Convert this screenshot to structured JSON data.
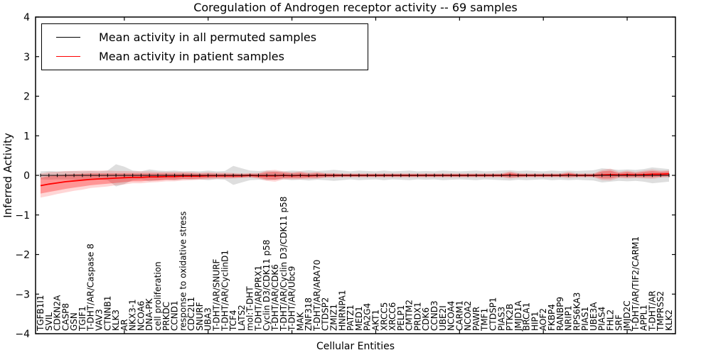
{
  "chart_data": {
    "type": "line",
    "title": "Coregulation of Androgen receptor activity -- 69 samples",
    "xlabel": "Cellular Entities",
    "ylabel": "Inferred Activity",
    "ylim": [
      -4,
      4
    ],
    "yticks": [
      4,
      3,
      2,
      1,
      0,
      -1,
      -2,
      -3,
      -4
    ],
    "ytick_labels": [
      "4",
      "3",
      "2",
      "1",
      "0",
      "−1",
      "−2",
      "−3",
      "−4"
    ],
    "xtick_step": 10,
    "grid": false,
    "legend_position": "upper left",
    "categories": [
      "TGFB1I1",
      "SVIL",
      "CDKN2A",
      "CASP8",
      "GSN",
      "TGIF1",
      "T-DHT/AR/Caspase 8",
      "VAV3",
      "CTNNB1",
      "KLK3",
      "AR",
      "NKX3-1",
      "NCOA6",
      "DNA-PK",
      "cell proliferation",
      "PRKDC",
      "CCND1",
      "response to oxidative stress",
      "CDC2L1",
      "SNURF",
      "UBA3",
      "T-DHT/AR/SNURF",
      "T-DHT/AR/CyclinD1",
      "TCF4",
      "LATS2",
      "mol:T-DHT",
      "T-DHT/AR/PRX1",
      "Cyclin D3/CDK11 p58",
      "T-DHT/AR/CDK6",
      "T-DHT/AR/Cyclin D3/CDK11 p58",
      "T-DHT/AR/Ubc9",
      "MAK",
      "ZNF318",
      "T-DHT/AR/ARA70",
      "CTDSP2",
      "ZMIZ1",
      "HNRNPA1",
      "PATZ1",
      "MED1",
      "PA2G4",
      "AKT1",
      "XRCC5",
      "XRCC6",
      "PELP1",
      "CMTM2",
      "PRDX1",
      "CDK6",
      "CCND3",
      "UBE2I",
      "NCOA4",
      "CARM1",
      "NCOA2",
      "PAWR",
      "TMF1",
      "CTDSP1",
      "PIAS3",
      "PTK2B",
      "JMJD1A",
      "BRCA1",
      "HIP1",
      "AOF2",
      "FKBP4",
      "RANBP9",
      "NRIP1",
      "RPS6KA3",
      "PIAS1",
      "UBE3A",
      "PIAS4",
      "FHL2",
      "SRF",
      "JMJD2C",
      "T-DHT/AR/TIF2/CARM1",
      "APPL1",
      "T-DHT/AR",
      "TMPRSS2",
      "KLK2"
    ],
    "series": [
      {
        "name": "Mean activity in all permuted samples",
        "color": "#000000",
        "band_color": "rgba(0,0,0,0.13)",
        "values": [
          0.0,
          0.0,
          0.0,
          0.0,
          0.0,
          0.0,
          0.0,
          0.0,
          0.0,
          0.0,
          0.0,
          0.0,
          0.0,
          0.0,
          0.0,
          0.0,
          0.0,
          0.0,
          0.0,
          0.0,
          0.0,
          0.0,
          0.0,
          0.0,
          0.0,
          0.0,
          0.0,
          0.0,
          0.0,
          0.0,
          0.0,
          0.0,
          0.0,
          0.0,
          0.0,
          0.0,
          0.0,
          0.0,
          0.0,
          0.0,
          0.0,
          0.0,
          0.0,
          0.0,
          0.0,
          0.0,
          0.0,
          0.0,
          0.0,
          0.0,
          0.0,
          0.0,
          0.0,
          0.0,
          0.0,
          0.0,
          0.0,
          0.0,
          0.0,
          0.0,
          0.0,
          0.0,
          0.0,
          0.0,
          0.0,
          0.0,
          0.0,
          0.0,
          0.0,
          0.0,
          0.0,
          0.0,
          0.0,
          0.0,
          0.0,
          0.0
        ],
        "std": [
          0.1,
          0.11,
          0.1,
          0.1,
          0.11,
          0.1,
          0.11,
          0.1,
          0.12,
          0.28,
          0.22,
          0.12,
          0.1,
          0.15,
          0.12,
          0.11,
          0.12,
          0.1,
          0.11,
          0.1,
          0.12,
          0.1,
          0.11,
          0.24,
          0.18,
          0.12,
          0.11,
          0.12,
          0.11,
          0.1,
          0.12,
          0.11,
          0.13,
          0.11,
          0.12,
          0.14,
          0.12,
          0.1,
          0.12,
          0.11,
          0.1,
          0.12,
          0.1,
          0.11,
          0.12,
          0.1,
          0.11,
          0.1,
          0.12,
          0.11,
          0.1,
          0.11,
          0.12,
          0.1,
          0.11,
          0.12,
          0.13,
          0.11,
          0.12,
          0.11,
          0.1,
          0.12,
          0.11,
          0.12,
          0.11,
          0.12,
          0.13,
          0.18,
          0.16,
          0.14,
          0.15,
          0.14,
          0.16,
          0.2,
          0.18,
          0.16
        ]
      },
      {
        "name": "Mean activity in patient samples",
        "color": "#ff0000",
        "band_color": "rgba(255,0,0,0.30)",
        "band_outer_color": "rgba(255,0,0,0.16)",
        "values": [
          -0.26,
          -0.22,
          -0.19,
          -0.16,
          -0.14,
          -0.12,
          -0.1,
          -0.09,
          -0.08,
          -0.07,
          -0.06,
          -0.05,
          -0.05,
          -0.04,
          -0.04,
          -0.03,
          -0.03,
          -0.02,
          -0.02,
          -0.02,
          -0.01,
          -0.01,
          -0.01,
          -0.01,
          -0.01,
          0.0,
          -0.01,
          -0.01,
          -0.01,
          0.0,
          -0.01,
          0.0,
          -0.01,
          0.0,
          0.0,
          0.0,
          0.0,
          0.0,
          0.0,
          0.0,
          0.0,
          0.0,
          0.0,
          0.0,
          0.0,
          0.0,
          0.0,
          0.0,
          0.0,
          0.0,
          0.0,
          0.0,
          0.0,
          0.0,
          0.0,
          0.0,
          0.01,
          0.0,
          0.0,
          0.0,
          0.0,
          0.0,
          0.0,
          0.01,
          0.0,
          0.0,
          0.0,
          0.01,
          0.02,
          0.01,
          0.02,
          0.01,
          0.02,
          0.03,
          0.03,
          0.04
        ],
        "std": [
          0.2,
          0.2,
          0.19,
          0.18,
          0.17,
          0.16,
          0.15,
          0.14,
          0.13,
          0.12,
          0.11,
          0.1,
          0.1,
          0.09,
          0.09,
          0.08,
          0.08,
          0.07,
          0.07,
          0.06,
          0.06,
          0.05,
          0.05,
          0.05,
          0.04,
          0.04,
          0.05,
          0.09,
          0.1,
          0.07,
          0.06,
          0.07,
          0.05,
          0.06,
          0.04,
          0.04,
          0.03,
          0.03,
          0.03,
          0.03,
          0.03,
          0.03,
          0.03,
          0.03,
          0.03,
          0.03,
          0.03,
          0.03,
          0.03,
          0.03,
          0.03,
          0.03,
          0.03,
          0.03,
          0.03,
          0.03,
          0.06,
          0.04,
          0.03,
          0.03,
          0.03,
          0.03,
          0.03,
          0.05,
          0.03,
          0.03,
          0.03,
          0.09,
          0.1,
          0.05,
          0.07,
          0.05,
          0.07,
          0.08,
          0.06,
          0.06
        ],
        "std_outer": [
          0.3,
          0.3,
          0.28,
          0.27,
          0.25,
          0.24,
          0.22,
          0.21,
          0.2,
          0.18,
          0.17,
          0.15,
          0.15,
          0.14,
          0.13,
          0.12,
          0.12,
          0.11,
          0.1,
          0.09,
          0.09,
          0.08,
          0.08,
          0.07,
          0.06,
          0.06,
          0.07,
          0.13,
          0.15,
          0.1,
          0.09,
          0.1,
          0.08,
          0.09,
          0.06,
          0.06,
          0.05,
          0.05,
          0.05,
          0.05,
          0.05,
          0.05,
          0.05,
          0.05,
          0.05,
          0.05,
          0.05,
          0.05,
          0.05,
          0.05,
          0.05,
          0.05,
          0.05,
          0.05,
          0.05,
          0.05,
          0.09,
          0.06,
          0.05,
          0.05,
          0.05,
          0.05,
          0.05,
          0.08,
          0.05,
          0.05,
          0.05,
          0.13,
          0.15,
          0.08,
          0.1,
          0.08,
          0.1,
          0.12,
          0.09,
          0.09
        ]
      }
    ]
  }
}
